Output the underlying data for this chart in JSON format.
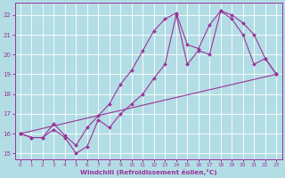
{
  "xlabel": "Windchill (Refroidissement éolien,°C)",
  "xlim": [
    -0.5,
    23.5
  ],
  "ylim": [
    14.7,
    22.6
  ],
  "yticks": [
    15,
    16,
    17,
    18,
    19,
    20,
    21,
    22
  ],
  "xticks": [
    0,
    1,
    2,
    3,
    4,
    5,
    6,
    7,
    8,
    9,
    10,
    11,
    12,
    13,
    14,
    15,
    16,
    17,
    18,
    19,
    20,
    21,
    22,
    23
  ],
  "bg_color": "#b3dde5",
  "grid_color": "#ffffff",
  "line_color": "#993399",
  "line1_x": [
    0,
    1,
    2,
    3,
    4,
    5,
    6,
    7,
    8,
    9,
    10,
    11,
    12,
    13,
    14,
    15,
    16,
    17,
    18,
    19,
    20,
    21,
    22,
    23
  ],
  "line1_y": [
    16.0,
    15.8,
    15.8,
    16.2,
    15.8,
    15.0,
    15.35,
    16.7,
    16.3,
    17.0,
    17.5,
    18.0,
    18.8,
    19.5,
    22.0,
    19.5,
    20.2,
    20.0,
    22.2,
    21.8,
    21.0,
    19.5,
    19.8,
    19.0
  ],
  "line2_x": [
    0,
    1,
    2,
    3,
    4,
    5,
    6,
    7,
    8,
    9,
    10,
    11,
    12,
    13,
    14,
    15,
    16,
    17,
    18,
    19,
    20,
    21,
    22,
    23
  ],
  "line2_y": [
    16.0,
    15.8,
    15.8,
    16.5,
    15.9,
    15.4,
    16.3,
    16.9,
    17.5,
    18.5,
    19.2,
    20.2,
    21.2,
    21.8,
    22.1,
    20.5,
    20.3,
    21.5,
    22.2,
    22.0,
    21.6,
    21.0,
    19.8,
    19.0
  ],
  "line3_x": [
    0,
    23
  ],
  "line3_y": [
    16.0,
    19.0
  ],
  "markersize": 2.0,
  "linewidth": 0.8
}
